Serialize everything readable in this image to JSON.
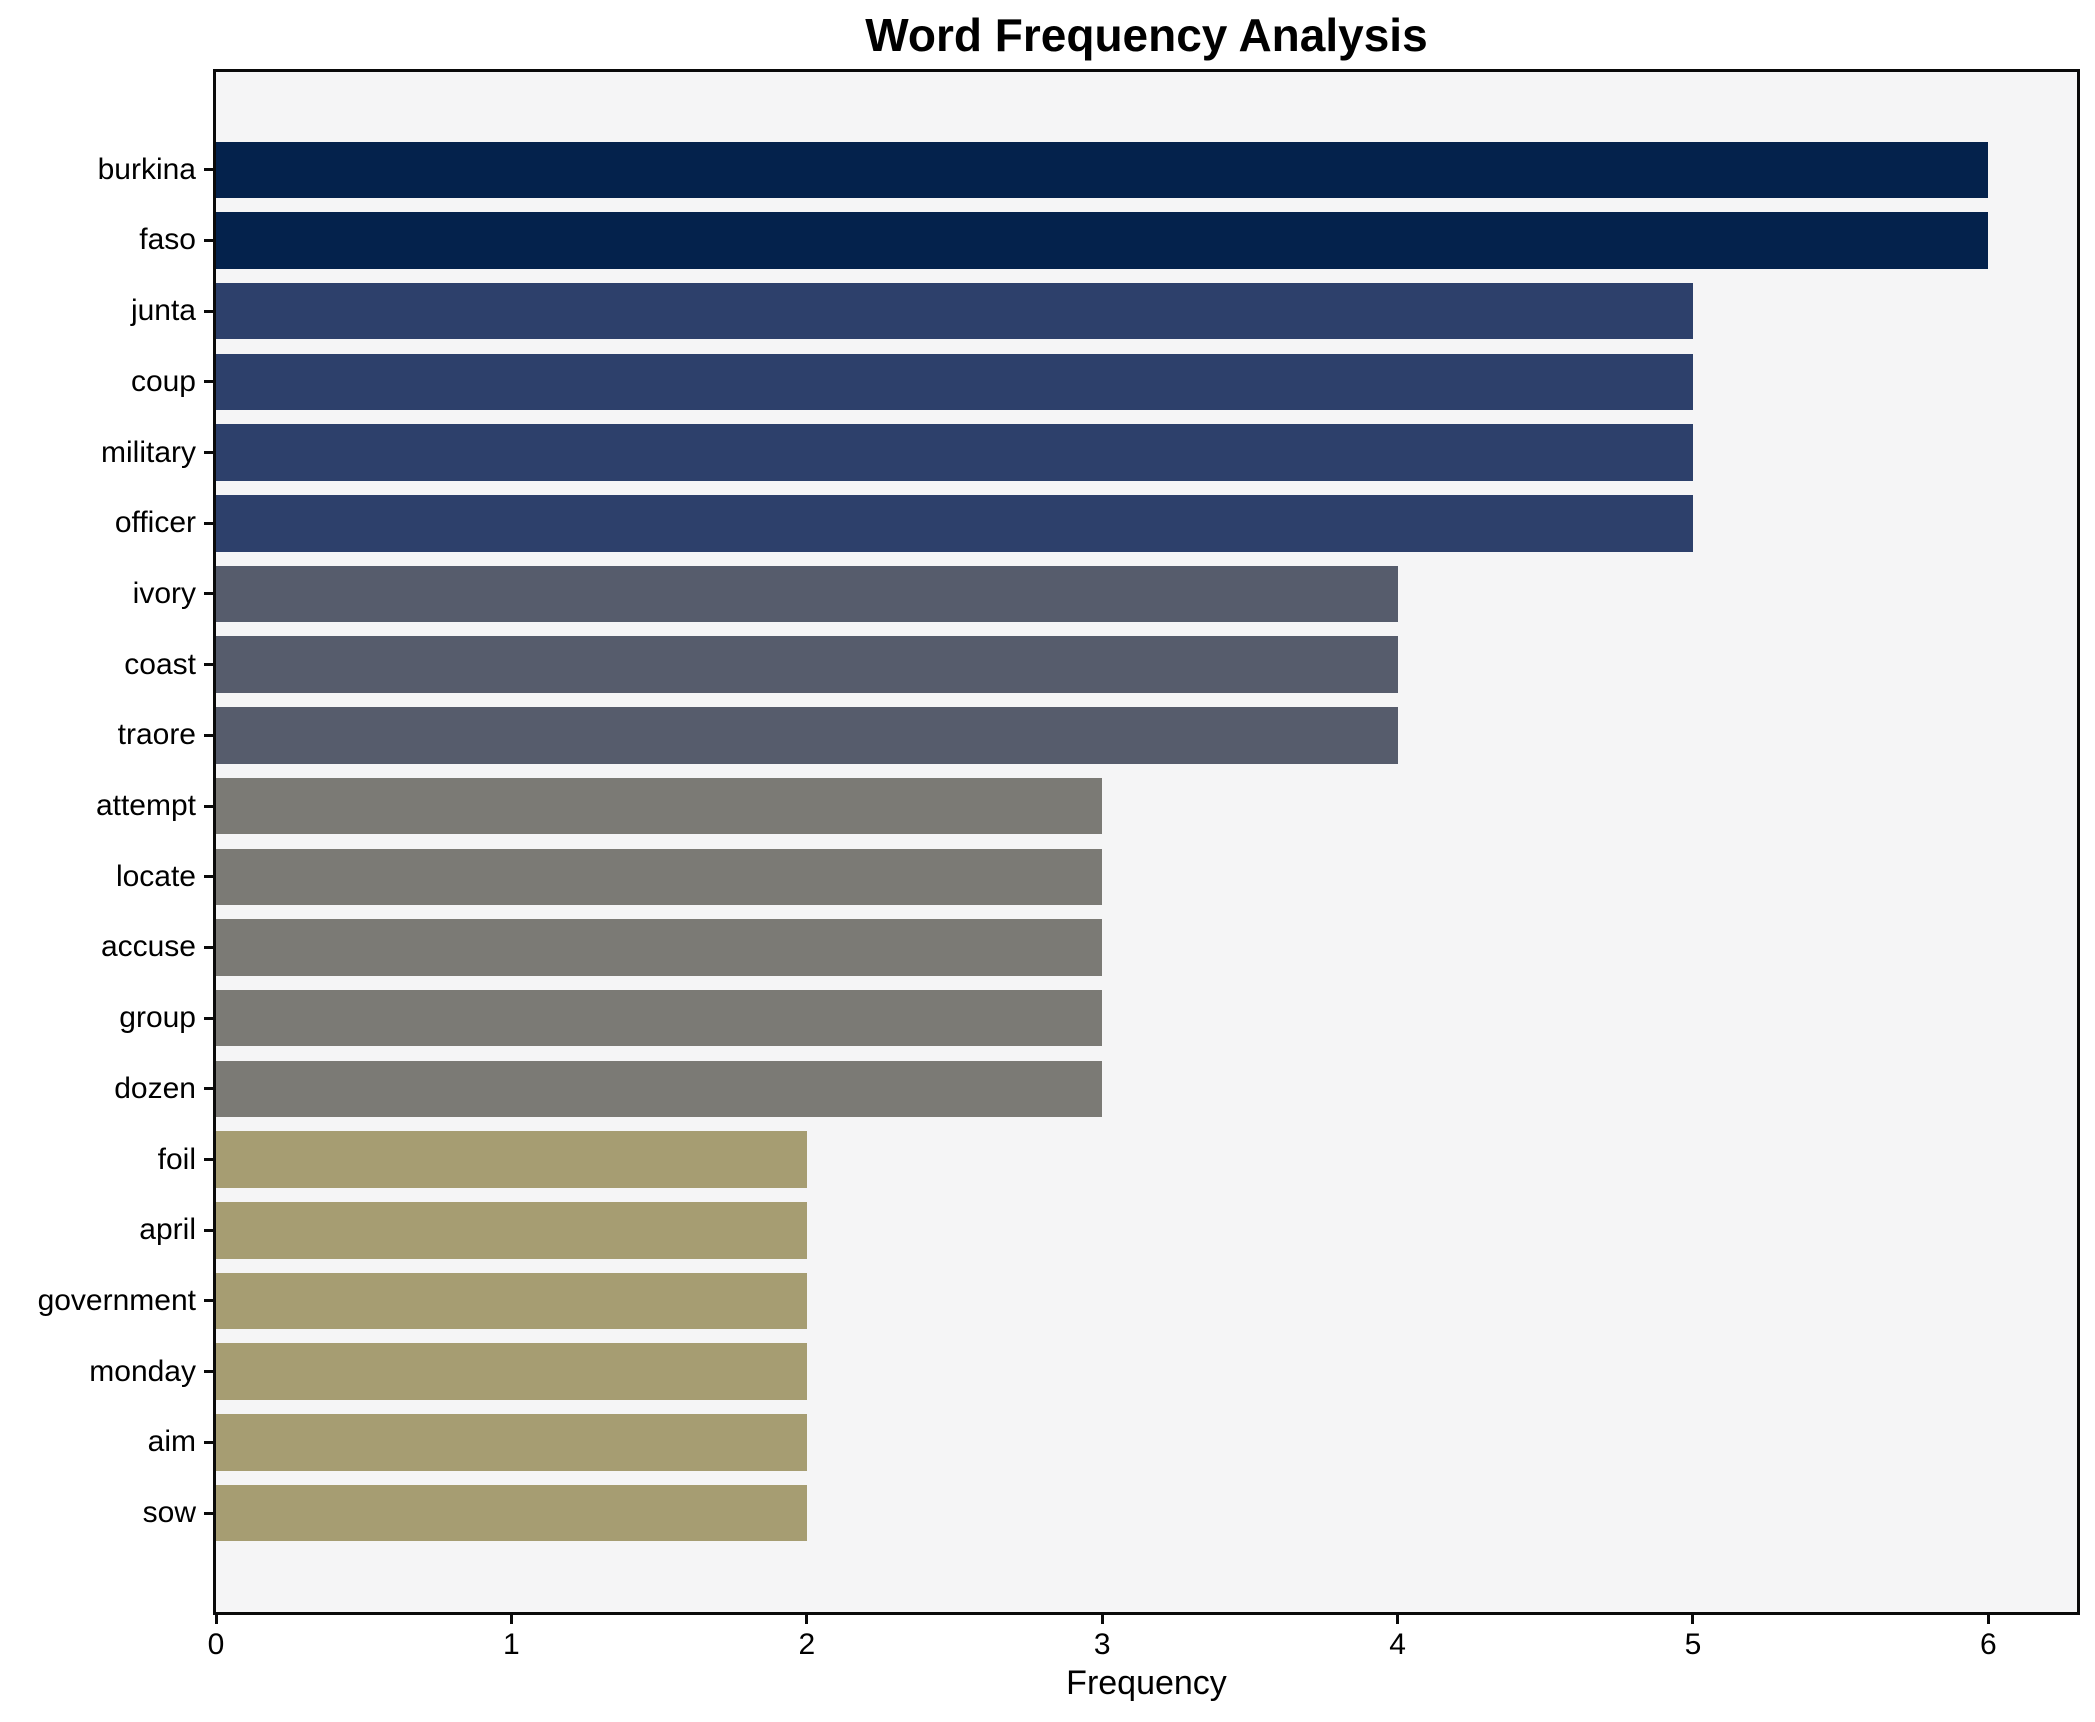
{
  "chart_data": {
    "type": "bar",
    "orientation": "horizontal",
    "title": "Word Frequency Analysis",
    "xlabel": "Frequency",
    "ylabel": "",
    "categories": [
      "burkina",
      "faso",
      "junta",
      "coup",
      "military",
      "officer",
      "ivory",
      "coast",
      "traore",
      "attempt",
      "locate",
      "accuse",
      "group",
      "dozen",
      "foil",
      "april",
      "government",
      "monday",
      "aim",
      "sow"
    ],
    "values": [
      6,
      6,
      5,
      5,
      5,
      5,
      4,
      4,
      4,
      3,
      3,
      3,
      3,
      3,
      2,
      2,
      2,
      2,
      2,
      2
    ],
    "bar_colors": [
      "#04224c",
      "#04224c",
      "#2d406b",
      "#2d406b",
      "#2d406b",
      "#2d406b",
      "#565c6c",
      "#565c6c",
      "#565c6c",
      "#7b7a75",
      "#7b7a75",
      "#7b7a75",
      "#7b7a75",
      "#7b7a75",
      "#a69d72",
      "#a69d72",
      "#a69d72",
      "#a69d72",
      "#a69d72",
      "#a69d72"
    ],
    "value_color_map": {
      "6": "#04224c",
      "5": "#2d406b",
      "4": "#565c6c",
      "3": "#7b7a75",
      "2": "#a69d72"
    },
    "xlim": [
      0,
      6.3
    ],
    "xticks": [
      "0",
      "1",
      "2",
      "3",
      "4",
      "5",
      "6"
    ],
    "grid": false,
    "legend_position": "none",
    "plot_background": "#f5f5f6",
    "figure_background": "#ffffff",
    "axis_color": "#0a0a0a",
    "text_color": "#000000"
  }
}
